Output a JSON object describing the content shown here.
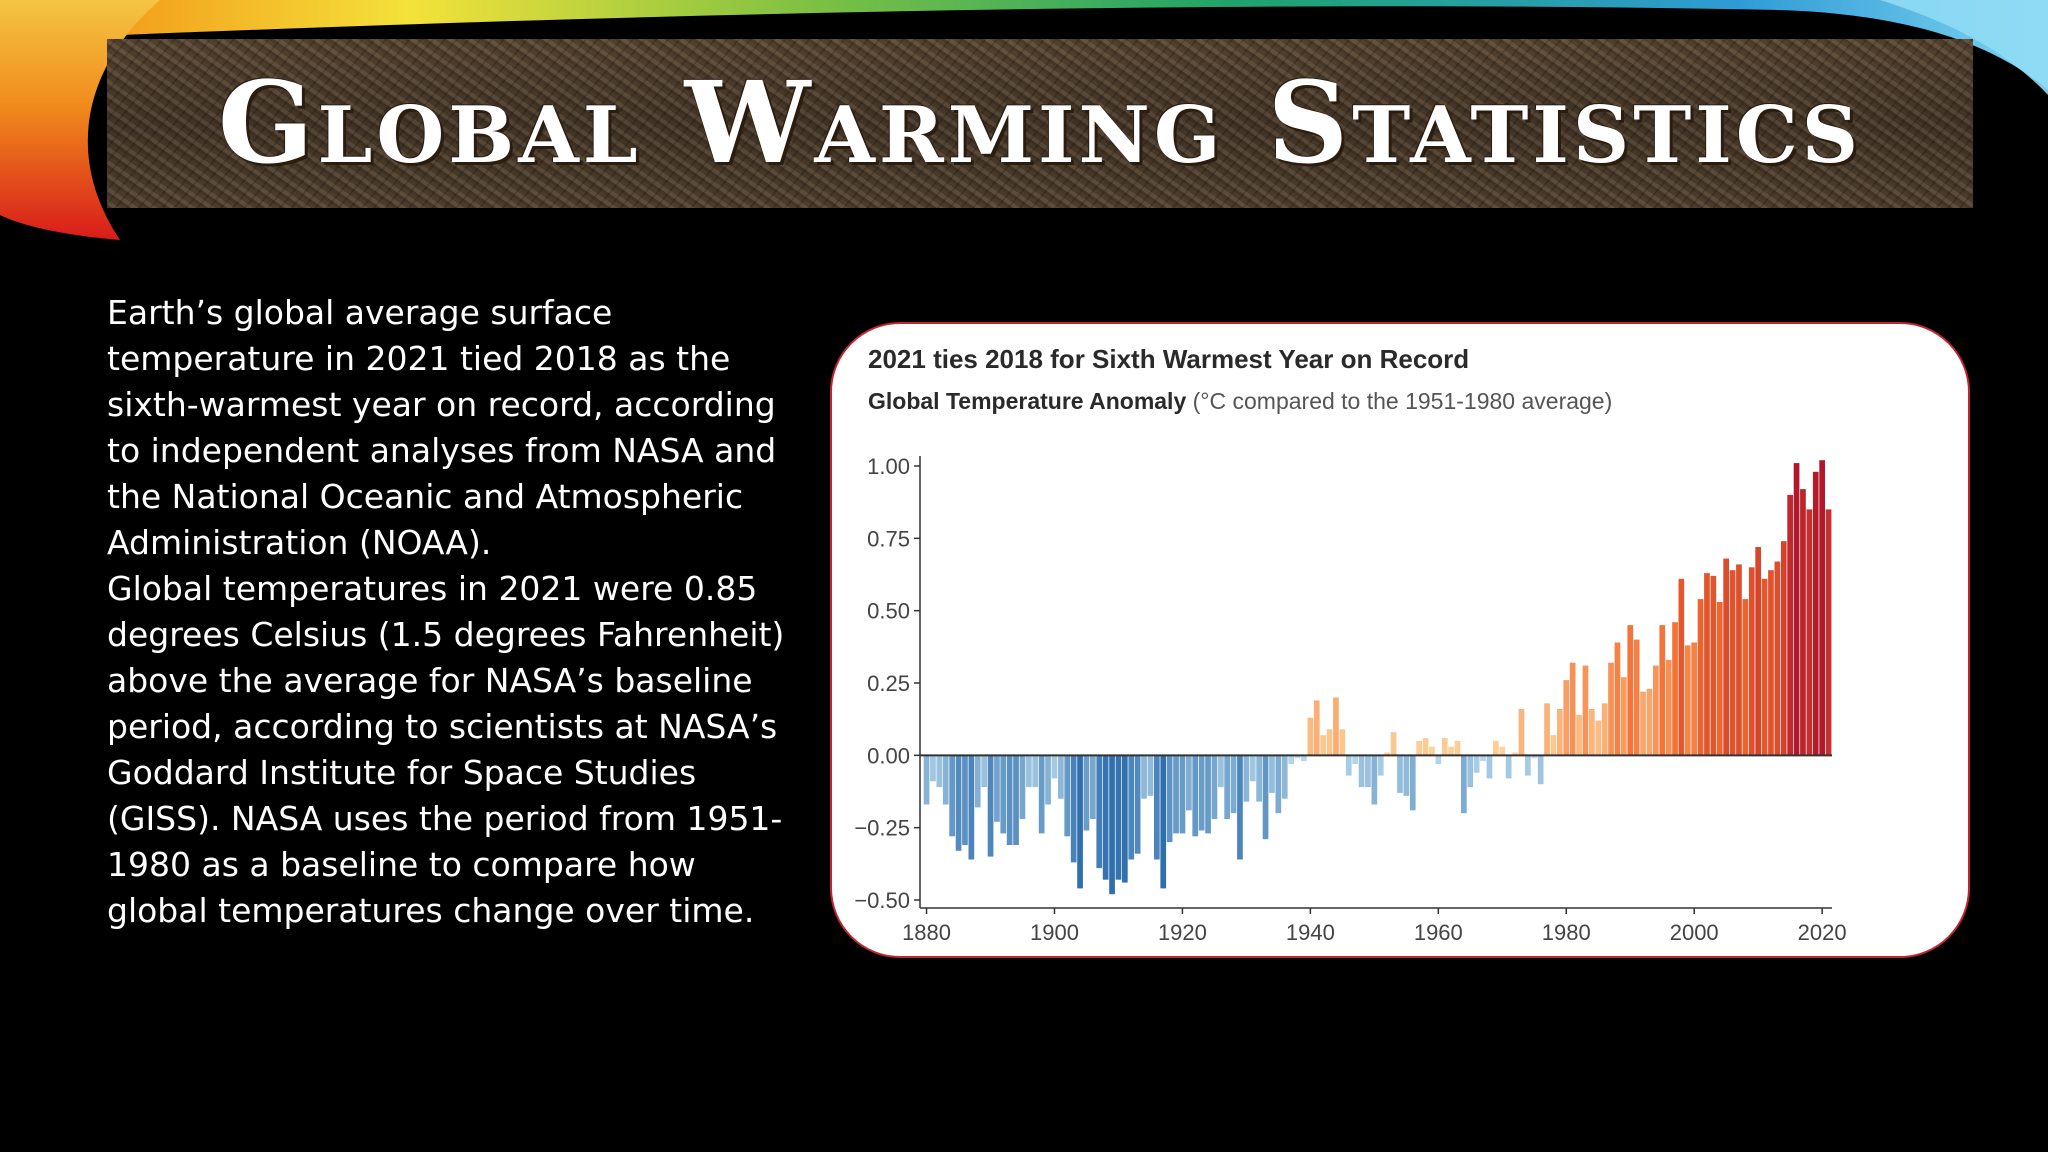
{
  "slide": {
    "title": "Global Warming Statistics",
    "body_paragraphs": [
      "Earth’s global average surface temperature in 2021 tied 2018 as the sixth-warmest year on record, according to independent analyses from NASA and the National Oceanic and Atmospheric Administration (NOAA).",
      "Global temperatures in 2021 were 0.85 degrees Celsius (1.5 degrees Fahrenheit) above the average for NASA’s baseline period, according to scientists at NASA’s Goddard Institute for Space Studies (GISS). NASA uses the period from 1951-1980 as a baseline to compare how global temperatures change over time."
    ]
  },
  "colors": {
    "background": "#000000",
    "chart_border": "#c0262d",
    "cold": "#2f6fae",
    "neutral_cold": "#bcdcee",
    "neutral_warm": "#fdd9a0",
    "hot": "#b2182b"
  },
  "chart_data": {
    "type": "bar",
    "title": "2021 ties 2018 for Sixth Warmest Year on Record",
    "subtitle_bold": "Global Temperature Anomaly",
    "subtitle_rest": " (°C compared to the 1951-1980 average)",
    "xlabel": "",
    "ylabel": "",
    "xlim": [
      1880,
      2021
    ],
    "ylim": [
      -0.5,
      1.0
    ],
    "y_ticks": [
      "1.00",
      "0.75",
      "0.50",
      "0.25",
      "0.00",
      "−0.25",
      "−0.50"
    ],
    "y_tick_values": [
      1.0,
      0.75,
      0.5,
      0.25,
      0.0,
      -0.25,
      -0.5
    ],
    "x_ticks": [
      "1880",
      "1900",
      "1920",
      "1940",
      "1960",
      "1980",
      "2000",
      "2020"
    ],
    "x_tick_values": [
      1880,
      1900,
      1920,
      1940,
      1960,
      1980,
      2000,
      2020
    ],
    "grid": false,
    "legend": "none",
    "x": [
      1880,
      1881,
      1882,
      1883,
      1884,
      1885,
      1886,
      1887,
      1888,
      1889,
      1890,
      1891,
      1892,
      1893,
      1894,
      1895,
      1896,
      1897,
      1898,
      1899,
      1900,
      1901,
      1902,
      1903,
      1904,
      1905,
      1906,
      1907,
      1908,
      1909,
      1910,
      1911,
      1912,
      1913,
      1914,
      1915,
      1916,
      1917,
      1918,
      1919,
      1920,
      1921,
      1922,
      1923,
      1924,
      1925,
      1926,
      1927,
      1928,
      1929,
      1930,
      1931,
      1932,
      1933,
      1934,
      1935,
      1936,
      1937,
      1938,
      1939,
      1940,
      1941,
      1942,
      1943,
      1944,
      1945,
      1946,
      1947,
      1948,
      1949,
      1950,
      1951,
      1952,
      1953,
      1954,
      1955,
      1956,
      1957,
      1958,
      1959,
      1960,
      1961,
      1962,
      1963,
      1964,
      1965,
      1966,
      1967,
      1968,
      1969,
      1970,
      1971,
      1972,
      1973,
      1974,
      1975,
      1976,
      1977,
      1978,
      1979,
      1980,
      1981,
      1982,
      1983,
      1984,
      1985,
      1986,
      1987,
      1988,
      1989,
      1990,
      1991,
      1992,
      1993,
      1994,
      1995,
      1996,
      1997,
      1998,
      1999,
      2000,
      2001,
      2002,
      2003,
      2004,
      2005,
      2006,
      2007,
      2008,
      2009,
      2010,
      2011,
      2012,
      2013,
      2014,
      2015,
      2016,
      2017,
      2018,
      2019,
      2020,
      2021
    ],
    "values": [
      -0.17,
      -0.09,
      -0.11,
      -0.17,
      -0.28,
      -0.33,
      -0.31,
      -0.36,
      -0.18,
      -0.11,
      -0.35,
      -0.23,
      -0.27,
      -0.31,
      -0.31,
      -0.22,
      -0.11,
      -0.11,
      -0.27,
      -0.17,
      -0.08,
      -0.15,
      -0.28,
      -0.37,
      -0.46,
      -0.26,
      -0.22,
      -0.39,
      -0.43,
      -0.48,
      -0.43,
      -0.44,
      -0.36,
      -0.34,
      -0.15,
      -0.14,
      -0.36,
      -0.46,
      -0.3,
      -0.27,
      -0.27,
      -0.19,
      -0.28,
      -0.26,
      -0.27,
      -0.22,
      -0.11,
      -0.22,
      -0.2,
      -0.36,
      -0.16,
      -0.09,
      -0.16,
      -0.29,
      -0.13,
      -0.2,
      -0.15,
      -0.03,
      -0.01,
      -0.02,
      0.13,
      0.19,
      0.07,
      0.09,
      0.2,
      0.09,
      -0.07,
      -0.03,
      -0.11,
      -0.11,
      -0.17,
      -0.07,
      0.01,
      0.08,
      -0.13,
      -0.14,
      -0.19,
      0.05,
      0.06,
      0.03,
      -0.03,
      0.06,
      0.03,
      0.05,
      -0.2,
      -0.11,
      -0.06,
      -0.02,
      -0.08,
      0.05,
      0.03,
      -0.08,
      0.01,
      0.16,
      -0.07,
      -0.01,
      -0.1,
      0.18,
      0.07,
      0.16,
      0.26,
      0.32,
      0.14,
      0.31,
      0.16,
      0.12,
      0.18,
      0.32,
      0.39,
      0.27,
      0.45,
      0.4,
      0.22,
      0.23,
      0.31,
      0.45,
      0.33,
      0.46,
      0.61,
      0.38,
      0.39,
      0.54,
      0.63,
      0.62,
      0.53,
      0.68,
      0.64,
      0.66,
      0.54,
      0.65,
      0.72,
      0.61,
      0.64,
      0.67,
      0.74,
      0.9,
      1.01,
      0.92,
      0.85,
      0.98,
      1.02,
      0.85
    ]
  }
}
